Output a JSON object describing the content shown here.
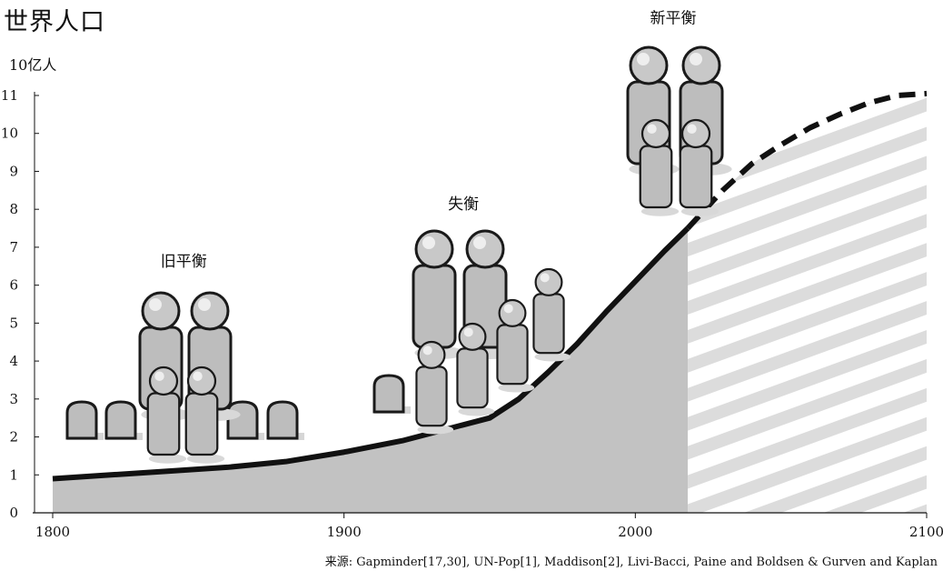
{
  "chart_data": {
    "type": "area",
    "title": "世界人口",
    "ylabel": "10亿人",
    "xlim": [
      1800,
      2100
    ],
    "ylim": [
      0,
      11
    ],
    "x_ticks": [
      1800,
      1900,
      2000,
      2100
    ],
    "y_ticks": [
      0,
      1,
      2,
      3,
      4,
      5,
      6,
      7,
      8,
      9,
      10,
      11
    ],
    "grid": false,
    "historical": {
      "x": [
        1800,
        1820,
        1840,
        1860,
        1880,
        1900,
        1920,
        1940,
        1950,
        1960,
        1970,
        1980,
        1990,
        2000,
        2010,
        2018
      ],
      "y": [
        0.9,
        1.0,
        1.1,
        1.2,
        1.35,
        1.6,
        1.9,
        2.3,
        2.5,
        3.0,
        3.7,
        4.45,
        5.3,
        6.1,
        6.9,
        7.5
      ]
    },
    "projection": {
      "style": "dashed",
      "x": [
        2018,
        2030,
        2040,
        2050,
        2060,
        2070,
        2080,
        2090,
        2100
      ],
      "y": [
        7.5,
        8.5,
        9.2,
        9.7,
        10.15,
        10.5,
        10.8,
        11.0,
        11.05
      ]
    },
    "annotations": [
      {
        "text": "旧平衡",
        "x": 1845,
        "y": 6.5
      },
      {
        "text": "失衡",
        "x": 1941,
        "y": 8.0
      },
      {
        "text": "新平衡",
        "x": 2013,
        "y": 12.9
      }
    ]
  },
  "source": "来源: Gapminder[17,30], UN-Pop[1], Maddison[2], Livi-Bacci, Paine and Boldsen & Gurven and Kaplan"
}
